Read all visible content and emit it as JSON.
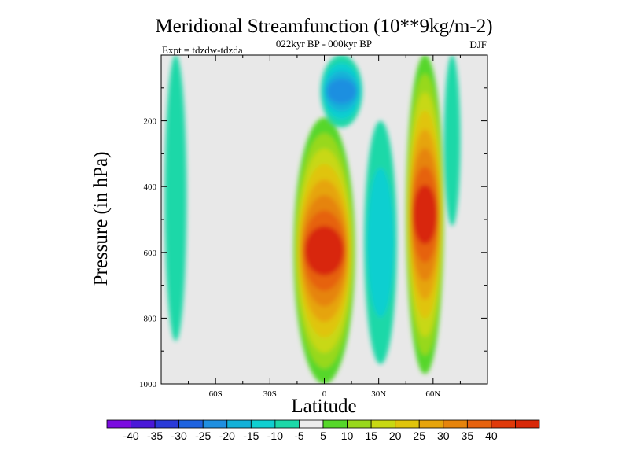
{
  "colors": {
    "background": "#e8e8e8",
    "palette": [
      "#7b0ce0",
      "#4a18d8",
      "#2a3ad8",
      "#1e63e0",
      "#1f8fe0",
      "#12b1d8",
      "#10cfd0",
      "#1cd8a8",
      "#ececec",
      "#56d72a",
      "#98d81c",
      "#c8d812",
      "#e0c40c",
      "#e6a40c",
      "#e6840c",
      "#e6620e",
      "#e03a0a",
      "#d82808"
    ]
  },
  "chart_data": {
    "type": "heatmap",
    "title": "Meridional Streamfunction (10**9kg/m-2)",
    "subtitle": "022kyr BP - 000kyr BP",
    "left_label": "Expt = tdzdw-tdzda",
    "right_label": "DJF",
    "xlabel": "Latitude",
    "ylabel": "Pressure (in hPa)",
    "xlim": [
      -90,
      90
    ],
    "ylim": [
      1000,
      0
    ],
    "x_ticks": [
      {
        "value": -60,
        "label": "60S"
      },
      {
        "value": -30,
        "label": "30S"
      },
      {
        "value": 0,
        "label": "0"
      },
      {
        "value": 30,
        "label": "30N"
      },
      {
        "value": 60,
        "label": "60N"
      }
    ],
    "y_ticks": [
      {
        "value": 200,
        "label": "200"
      },
      {
        "value": 400,
        "label": "400"
      },
      {
        "value": 600,
        "label": "600"
      },
      {
        "value": 800,
        "label": "800"
      },
      {
        "value": 1000,
        "label": "1000"
      }
    ],
    "colorbar_levels": [
      "-40",
      "-35",
      "-30",
      "-25",
      "-20",
      "-15",
      "-10",
      "-5",
      "5",
      "10",
      "15",
      "20",
      "25",
      "30",
      "35",
      "40"
    ],
    "features": [
      {
        "name": "sh-polar-negative-cell",
        "lat": [
          -88,
          -76
        ],
        "p": [
          0,
          870
        ],
        "peak": -8
      },
      {
        "name": "tropical-positive-cell",
        "lat": [
          -17,
          17
        ],
        "p": [
          190,
          1000
        ],
        "peak": 42
      },
      {
        "name": "upper-tropical-negative-core",
        "lat": [
          -2,
          21
        ],
        "p": [
          0,
          220
        ],
        "peak": -24
      },
      {
        "name": "nh-subtropical-negative-cell",
        "lat": [
          22,
          40
        ],
        "p": [
          200,
          940
        ],
        "peak": -14
      },
      {
        "name": "nh-midlatitude-positive-cell",
        "lat": [
          45,
          66
        ],
        "p": [
          0,
          970
        ],
        "peak": 40
      },
      {
        "name": "nh-high-latitude-negative-cell",
        "lat": [
          66,
          75
        ],
        "p": [
          0,
          520
        ],
        "peak": -8
      }
    ]
  }
}
